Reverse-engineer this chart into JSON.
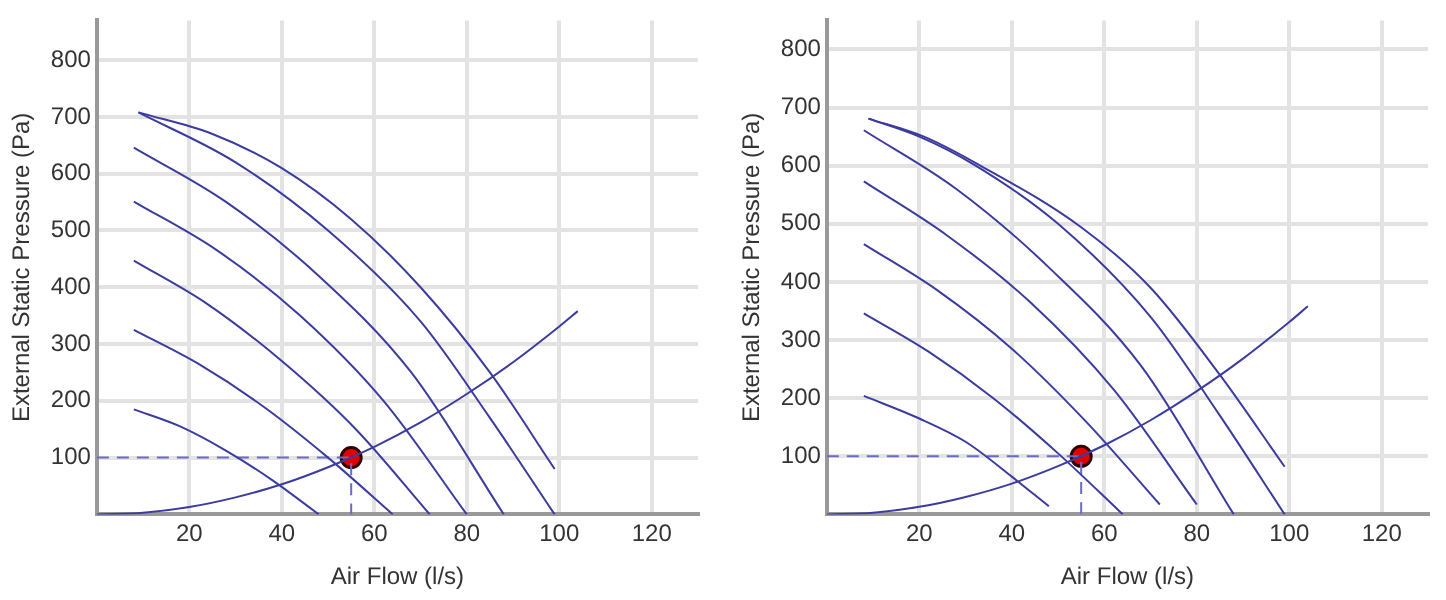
{
  "chart_data": [
    {
      "type": "line",
      "xlabel": "Air Flow (l/s)",
      "ylabel": "External Static Pressure (Pa)",
      "xlim": [
        0,
        130
      ],
      "ylim": [
        0,
        870
      ],
      "xticks": [
        20,
        40,
        60,
        80,
        100,
        120
      ],
      "yticks": [
        100,
        200,
        300,
        400,
        500,
        600,
        700,
        800
      ],
      "grid": true,
      "legend": false,
      "marker": "none",
      "line_style": "solid",
      "series": [
        {
          "color": "#3c3ca0",
          "x": [
            8,
            18,
            28,
            38,
            48
          ],
          "values": [
            185,
            155,
            112,
            60,
            0
          ]
        },
        {
          "color": "#3c3ca0",
          "x": [
            8,
            22,
            36,
            50,
            64
          ],
          "values": [
            325,
            265,
            190,
            100,
            0
          ]
        },
        {
          "color": "#3c3ca0",
          "x": [
            8,
            24,
            40,
            56,
            72
          ],
          "values": [
            447,
            370,
            270,
            150,
            0
          ]
        },
        {
          "color": "#3c3ca0",
          "x": [
            8,
            26,
            44,
            62,
            80
          ],
          "values": [
            551,
            465,
            350,
            200,
            0
          ]
        },
        {
          "color": "#3c3ca0",
          "x": [
            8,
            28,
            48,
            68,
            88
          ],
          "values": [
            646,
            550,
            420,
            250,
            0
          ]
        },
        {
          "color": "#3c3ca0",
          "x": [
            9,
            30,
            50,
            70,
            85,
            99
          ],
          "values": [
            708,
            620,
            500,
            340,
            170,
            0
          ]
        },
        {
          "color": "#3c3ca0",
          "x": [
            9,
            25,
            40,
            55,
            70,
            85,
            99
          ],
          "values": [
            708,
            670,
            610,
            520,
            400,
            250,
            80
          ]
        },
        {
          "color": "#3c3ca0",
          "x": [
            0,
            10,
            20,
            30,
            40,
            50,
            60,
            70,
            80,
            90,
            100,
            104
          ],
          "values": [
            0,
            3,
            13,
            30,
            53,
            83,
            119,
            162,
            212,
            268,
            331,
            358
          ]
        },
        {
          "color": "#6a6ac8",
          "line_style": "dashed",
          "x": [
            0,
            55,
            55
          ],
          "values": [
            100,
            100,
            0
          ]
        },
        {
          "type": "scatter",
          "marker": "circle",
          "color": "#e00000",
          "x": [
            55
          ],
          "values": [
            100
          ]
        }
      ]
    },
    {
      "type": "line",
      "xlabel": "Air Flow (l/s)",
      "ylabel": "External Static Pressure (Pa)",
      "xlim": [
        0,
        130
      ],
      "ylim": [
        0,
        850
      ],
      "xticks": [
        20,
        40,
        60,
        80,
        100,
        120
      ],
      "yticks": [
        100,
        200,
        300,
        400,
        500,
        600,
        700,
        800
      ],
      "grid": true,
      "legend": false,
      "marker": "none",
      "line_style": "solid",
      "series": [
        {
          "color": "#3c3ca0",
          "x": [
            8,
            20,
            30,
            40,
            48
          ],
          "values": [
            204,
            165,
            125,
            65,
            14
          ]
        },
        {
          "color": "#3c3ca0",
          "x": [
            8,
            22,
            36,
            50,
            64
          ],
          "values": [
            346,
            280,
            200,
            105,
            0
          ]
        },
        {
          "color": "#3c3ca0",
          "x": [
            8,
            24,
            40,
            56,
            72
          ],
          "values": [
            465,
            385,
            285,
            160,
            17
          ]
        },
        {
          "color": "#3c3ca0",
          "x": [
            8,
            26,
            44,
            62,
            80
          ],
          "values": [
            573,
            480,
            365,
            215,
            17
          ]
        },
        {
          "color": "#3c3ca0",
          "x": [
            8,
            28,
            48,
            68,
            88
          ],
          "values": [
            661,
            560,
            425,
            255,
            0
          ]
        },
        {
          "color": "#3c3ca0",
          "x": [
            9,
            20,
            32,
            50,
            70,
            85,
            99
          ],
          "values": [
            681,
            650,
            601,
            500,
            340,
            170,
            0
          ]
        },
        {
          "color": "#3c3ca0",
          "x": [
            9,
            21,
            33,
            55,
            70,
            85,
            99
          ],
          "values": [
            681,
            650,
            601,
            494,
            390,
            240,
            82
          ]
        },
        {
          "color": "#3c3ca0",
          "x": [
            0,
            10,
            20,
            30,
            40,
            50,
            60,
            70,
            80,
            90,
            100,
            104
          ],
          "values": [
            0,
            3,
            13,
            30,
            53,
            83,
            119,
            162,
            212,
            268,
            331,
            358
          ]
        },
        {
          "color": "#6a6ac8",
          "line_style": "dashed",
          "x": [
            0,
            55,
            55
          ],
          "values": [
            100,
            100,
            0
          ]
        },
        {
          "type": "scatter",
          "marker": "circle",
          "color": "#e00000",
          "x": [
            55
          ],
          "values": [
            100
          ]
        }
      ]
    }
  ]
}
